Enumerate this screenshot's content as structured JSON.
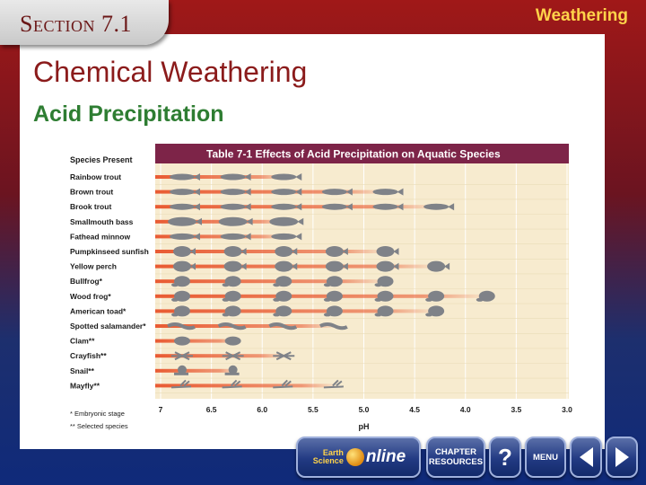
{
  "header": {
    "section_label": "Section 7.1",
    "topic": "Weathering"
  },
  "slide": {
    "title": "Chemical Weathering",
    "subtitle": "Acid Precipitation"
  },
  "chart_data": {
    "type": "table",
    "title": "Table 7-1  Effects of Acid Precipitation on Aquatic Species",
    "header_left": "Species Present",
    "xlabel": "pH",
    "x_ticks": [
      "7",
      "6.5",
      "6.0",
      "5.5",
      "5.0",
      "4.5",
      "4.0",
      "3.5",
      "3.0"
    ],
    "x_range": [
      7,
      3
    ],
    "species": [
      {
        "name": "Rainbow trout",
        "min_ph": 6.0,
        "kind": "fish"
      },
      {
        "name": "Brown trout",
        "min_ph": 5.0,
        "kind": "fish"
      },
      {
        "name": "Brook trout",
        "min_ph": 4.5,
        "kind": "fish"
      },
      {
        "name": "Smallmouth bass",
        "min_ph": 6.0,
        "kind": "bass"
      },
      {
        "name": "Fathead minnow",
        "min_ph": 6.0,
        "kind": "fish"
      },
      {
        "name": "Pumpkinseed sunfish",
        "min_ph": 5.0,
        "kind": "sunfish"
      },
      {
        "name": "Yellow perch",
        "min_ph": 4.5,
        "kind": "sunfish"
      },
      {
        "name": "Bullfrog*",
        "min_ph": 5.0,
        "kind": "frog"
      },
      {
        "name": "Wood frog*",
        "min_ph": 4.0,
        "kind": "frog"
      },
      {
        "name": "American toad*",
        "min_ph": 4.5,
        "kind": "frog"
      },
      {
        "name": "Spotted salamander*",
        "min_ph": 5.5,
        "kind": "salamander"
      },
      {
        "name": "Clam**",
        "min_ph": 6.5,
        "kind": "clam"
      },
      {
        "name": "Crayfish**",
        "min_ph": 6.0,
        "kind": "crayfish"
      },
      {
        "name": "Snail**",
        "min_ph": 6.5,
        "kind": "snail"
      },
      {
        "name": "Mayfly**",
        "min_ph": 5.5,
        "kind": "mayfly"
      }
    ],
    "footnotes": [
      "* Embryonic stage",
      "** Selected species"
    ],
    "colors": {
      "panel": "#f7ebcf",
      "title_bar": "#7d2448",
      "bar": "#e8532a",
      "silhouette": "#7f8288",
      "grid": "#ffffff"
    }
  },
  "nav": {
    "earth_science": "Earth Science",
    "online": "nline",
    "chapter_resources": "CHAPTER RESOURCES",
    "help": "?",
    "menu": "MENU",
    "prev_icon": "left-arrow-icon",
    "next_icon": "right-arrow-icon"
  }
}
